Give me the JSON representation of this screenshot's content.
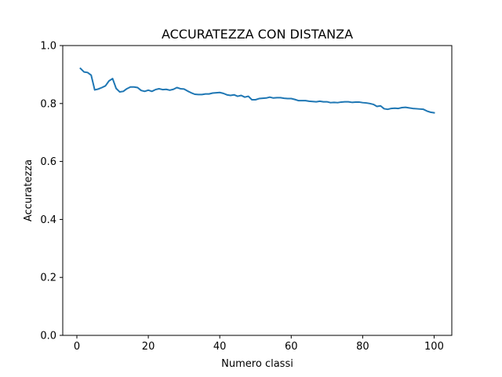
{
  "chart_data": {
    "type": "line",
    "title": "ACCURATEZZA CON DISTANZA",
    "xlabel": "Numero classi",
    "ylabel": "Accuratezza",
    "xlim": [
      -3.95,
      104.95
    ],
    "ylim": [
      0.0,
      1.0
    ],
    "xticks": [
      0,
      20,
      40,
      60,
      80,
      100
    ],
    "xtick_labels": [
      "0",
      "20",
      "40",
      "60",
      "80",
      "100"
    ],
    "yticks": [
      0.0,
      0.2,
      0.4,
      0.6,
      0.8,
      1.0
    ],
    "ytick_labels": [
      "0.0",
      "0.2",
      "0.4",
      "0.6",
      "0.8",
      "1.0"
    ],
    "grid": false,
    "series": [
      {
        "color": "#1f77b4",
        "x": [
          1,
          2,
          3,
          4,
          5,
          6,
          7,
          8,
          9,
          10,
          11,
          12,
          13,
          14,
          15,
          16,
          17,
          18,
          19,
          20,
          21,
          22,
          23,
          24,
          25,
          26,
          27,
          28,
          29,
          30,
          31,
          32,
          33,
          34,
          35,
          36,
          37,
          38,
          39,
          40,
          41,
          42,
          43,
          44,
          45,
          46,
          47,
          48,
          49,
          50,
          51,
          52,
          53,
          54,
          55,
          56,
          57,
          58,
          59,
          60,
          61,
          62,
          63,
          64,
          65,
          66,
          67,
          68,
          69,
          70,
          71,
          72,
          73,
          74,
          75,
          76,
          77,
          78,
          79,
          80,
          81,
          82,
          83,
          84,
          85,
          86,
          87,
          88,
          89,
          90,
          91,
          92,
          93,
          94,
          95,
          96,
          97,
          98,
          99,
          100
        ],
        "y": [
          0.921,
          0.909,
          0.907,
          0.898,
          0.847,
          0.85,
          0.855,
          0.861,
          0.878,
          0.886,
          0.852,
          0.84,
          0.842,
          0.851,
          0.857,
          0.857,
          0.855,
          0.845,
          0.842,
          0.846,
          0.842,
          0.848,
          0.851,
          0.848,
          0.849,
          0.846,
          0.849,
          0.855,
          0.851,
          0.85,
          0.843,
          0.837,
          0.832,
          0.831,
          0.831,
          0.833,
          0.833,
          0.836,
          0.837,
          0.838,
          0.835,
          0.83,
          0.828,
          0.83,
          0.825,
          0.828,
          0.822,
          0.825,
          0.813,
          0.813,
          0.817,
          0.818,
          0.819,
          0.822,
          0.819,
          0.82,
          0.82,
          0.818,
          0.817,
          0.817,
          0.814,
          0.81,
          0.81,
          0.81,
          0.808,
          0.807,
          0.806,
          0.808,
          0.806,
          0.806,
          0.803,
          0.804,
          0.803,
          0.805,
          0.806,
          0.806,
          0.804,
          0.805,
          0.805,
          0.803,
          0.802,
          0.8,
          0.797,
          0.79,
          0.792,
          0.782,
          0.78,
          0.783,
          0.784,
          0.783,
          0.786,
          0.787,
          0.785,
          0.783,
          0.782,
          0.781,
          0.78,
          0.774,
          0.77,
          0.768
        ]
      }
    ]
  }
}
